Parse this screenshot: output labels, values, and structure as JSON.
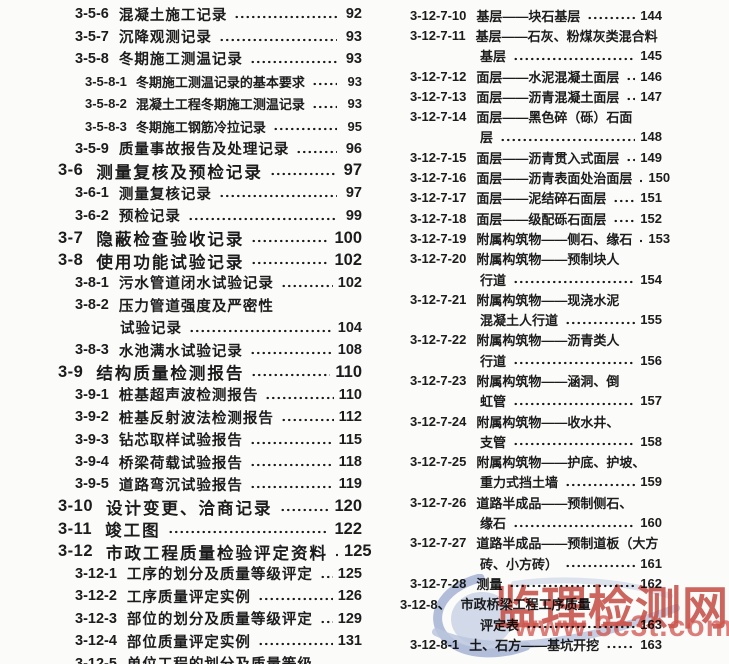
{
  "colors": {
    "ink": "#1c1c1c",
    "paper": "#fbfbfa"
  },
  "columns": {
    "left": {
      "rows": [
        {
          "n": "3-5-6",
          "t": "混凝土施工记录",
          "p": "92",
          "lv": "l2"
        },
        {
          "n": "3-5-7",
          "t": "沉降观测记录",
          "p": "93",
          "lv": "l2"
        },
        {
          "n": "3-5-8",
          "t": "冬期施工测温记录",
          "p": "93",
          "lv": "l2"
        },
        {
          "n": "3-5-8-1",
          "t": "冬期施工测温记录的基本要求",
          "p": "93",
          "lv": "l3"
        },
        {
          "n": "3-5-8-2",
          "t": "混凝土工程冬期施工测温记录",
          "p": "93",
          "lv": "l3"
        },
        {
          "n": "3-5-8-3",
          "t": "冬期施工钢筋冷拉记录",
          "p": "95",
          "lv": "l3"
        },
        {
          "n": "3-5-9",
          "t": "质量事故报告及处理记录",
          "p": "96",
          "lv": "l2"
        },
        {
          "n": "3-6",
          "t": "测量复核及预检记录",
          "p": "97",
          "lv": "h1"
        },
        {
          "n": "3-6-1",
          "t": "测量复核记录",
          "p": "97",
          "lv": "l2"
        },
        {
          "n": "3-6-2",
          "t": "预检记录",
          "p": "99",
          "lv": "l2"
        },
        {
          "n": "3-7",
          "t": "隐蔽检查验收记录",
          "p": "100",
          "lv": "h1"
        },
        {
          "n": "3-8",
          "t": "使用功能试验记录",
          "p": "102",
          "lv": "h1"
        },
        {
          "n": "3-8-1",
          "t": "污水管道闭水试验记录",
          "p": "102",
          "lv": "l2"
        },
        {
          "n": "3-8-2",
          "t": "压力管道强度及严密性",
          "p": "",
          "lv": "l2"
        },
        {
          "n": "",
          "t": "试验记录",
          "p": "104",
          "lv": "cont2"
        },
        {
          "n": "3-8-3",
          "t": "水池满水试验记录",
          "p": "108",
          "lv": "l2"
        },
        {
          "n": "3-9",
          "t": "结构质量检测报告",
          "p": "110",
          "lv": "h1"
        },
        {
          "n": "3-9-1",
          "t": "桩基超声波检测报告",
          "p": "110",
          "lv": "l2"
        },
        {
          "n": "3-9-2",
          "t": "桩基反射波法检测报告",
          "p": "112",
          "lv": "l2"
        },
        {
          "n": "3-9-3",
          "t": "钻芯取样试验报告",
          "p": "115",
          "lv": "l2"
        },
        {
          "n": "3-9-4",
          "t": "桥梁荷载试验报告",
          "p": "118",
          "lv": "l2"
        },
        {
          "n": "3-9-5",
          "t": "道路弯沉试验报告",
          "p": "119",
          "lv": "l2"
        },
        {
          "n": "3-10",
          "t": "设计变更、洽商记录",
          "p": "120",
          "lv": "h1"
        },
        {
          "n": "3-11",
          "t": "竣工图",
          "p": "122",
          "lv": "h1"
        },
        {
          "n": "3-12",
          "t": "市政工程质量检验评定资料",
          "p": "125",
          "lv": "h1"
        },
        {
          "n": "3-12-1",
          "t": "工序的划分及质量等级评定",
          "p": "125",
          "lv": "l2"
        },
        {
          "n": "3-12-2",
          "t": "工序质量评定实例",
          "p": "126",
          "lv": "l2"
        },
        {
          "n": "3-12-3",
          "t": "部位的划分及质量等级评定",
          "p": "129",
          "lv": "l2"
        },
        {
          "n": "3-12-4",
          "t": "部位质量评定实例",
          "p": "131",
          "lv": "l2"
        },
        {
          "n": "3-12-5",
          "t": "单位工程的划分及质量等级",
          "p": "",
          "lv": "l2"
        }
      ]
    },
    "right": {
      "rows": [
        {
          "n": "3-12-7-10",
          "t": "基层——块石基层",
          "p": "144",
          "lv": "r1"
        },
        {
          "n": "3-12-7-11",
          "t": "基层——石灰、粉煤灰类混合料",
          "p": "",
          "lv": "r1"
        },
        {
          "n": "",
          "t": "基层",
          "p": "145",
          "lv": "rc"
        },
        {
          "n": "3-12-7-12",
          "t": "面层——水泥混凝土面层",
          "p": "146",
          "lv": "r1"
        },
        {
          "n": "3-12-7-13",
          "t": "面层——沥青混凝土面层",
          "p": "147",
          "lv": "r1"
        },
        {
          "n": "3-12-7-14",
          "t": "面层——黑色碎（砾）石面",
          "p": "",
          "lv": "r1"
        },
        {
          "n": "",
          "t": "层",
          "p": "148",
          "lv": "rc"
        },
        {
          "n": "3-12-7-15",
          "t": "面层——沥青贯入式面层",
          "p": "149",
          "lv": "r1"
        },
        {
          "n": "3-12-7-16",
          "t": "面层——沥青表面处治面层",
          "p": "150",
          "lv": "r1"
        },
        {
          "n": "3-12-7-17",
          "t": "面层——泥结碎石面层",
          "p": "151",
          "lv": "r1"
        },
        {
          "n": "3-12-7-18",
          "t": "面层——级配砾石面层",
          "p": "152",
          "lv": "r1"
        },
        {
          "n": "3-12-7-19",
          "t": "附属构筑物——侧石、缘石",
          "p": "153",
          "lv": "r1"
        },
        {
          "n": "3-12-7-20",
          "t": "附属构筑物——预制块人",
          "p": "",
          "lv": "r1"
        },
        {
          "n": "",
          "t": "行道",
          "p": "154",
          "lv": "rc"
        },
        {
          "n": "3-12-7-21",
          "t": "附属构筑物——现浇水泥",
          "p": "",
          "lv": "r1"
        },
        {
          "n": "",
          "t": "混凝土人行道",
          "p": "155",
          "lv": "rc"
        },
        {
          "n": "3-12-7-22",
          "t": "附属构筑物——沥青类人",
          "p": "",
          "lv": "r1"
        },
        {
          "n": "",
          "t": "行道",
          "p": "156",
          "lv": "rc"
        },
        {
          "n": "3-12-7-23",
          "t": "附属构筑物——涵洞、倒",
          "p": "",
          "lv": "r1"
        },
        {
          "n": "",
          "t": "虹管",
          "p": "157",
          "lv": "rc"
        },
        {
          "n": "3-12-7-24",
          "t": "附属构筑物——收水井、",
          "p": "",
          "lv": "r1"
        },
        {
          "n": "",
          "t": "支管",
          "p": "158",
          "lv": "rc"
        },
        {
          "n": "3-12-7-25",
          "t": "附属构筑物——护底、护坡、",
          "p": "",
          "lv": "r1"
        },
        {
          "n": "",
          "t": "重力式挡土墙",
          "p": "159",
          "lv": "rc"
        },
        {
          "n": "3-12-7-26",
          "t": "道路半成品——预制侧石、",
          "p": "",
          "lv": "r1"
        },
        {
          "n": "",
          "t": "缘石",
          "p": "160",
          "lv": "rc"
        },
        {
          "n": "3-12-7-27",
          "t": "道路半成品——预制道板（大方",
          "p": "",
          "lv": "r1"
        },
        {
          "n": "",
          "t": "砖、小方砖）",
          "p": "161",
          "lv": "rc"
        },
        {
          "n": "3-12-7-28",
          "t": "测量",
          "p": "162",
          "lv": "r1"
        },
        {
          "n": "3-12-8、",
          "t": "市政桥梁工程工序质量",
          "p": "",
          "lv": "r2"
        },
        {
          "n": "",
          "t": "评定表",
          "p": "163",
          "lv": "rc"
        },
        {
          "n": "3-12-8-1",
          "t": "土、石方——基坑开挖",
          "p": "163",
          "lv": "r1"
        }
      ]
    }
  },
  "watermark": {
    "site_name": "监理检测网",
    "site_url": "www.3c3t.com",
    "name_color": "#c6463c",
    "url_color": "#d4544e",
    "logo_color": "#a3b2d6"
  }
}
